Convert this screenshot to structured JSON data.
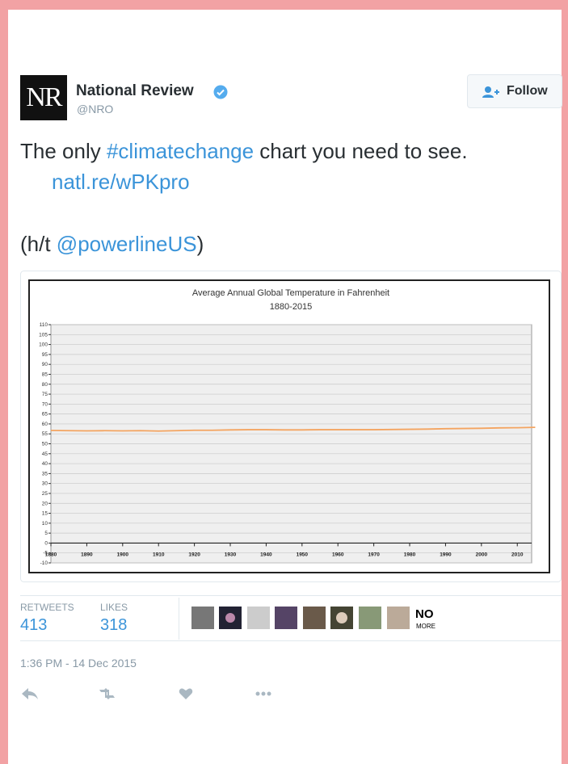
{
  "tweet": {
    "logo": "NR",
    "author": "National Review",
    "handle": "@NRO",
    "follow": "Follow",
    "text": {
      "prefix": "The only ",
      "hashtag": "#climatechange",
      "suffix": " chart you need to see.",
      "link": "natl.re/wPKpro",
      "ht_open": "(h/t ",
      "mention": "@powerlineUS",
      "ht_close": ")"
    },
    "stats": {
      "retweets_label": "RETWEETS",
      "retweets": "413",
      "likes_label": "LIKES",
      "likes": "318",
      "badge": [
        "NO",
        "MORE"
      ]
    },
    "timestamp": "1:36 PM - 14 Dec 2015"
  },
  "chart_data": {
    "type": "line",
    "title": "Average Annual Global Temperature in Fahrenheit",
    "subtitle": "1880-2015",
    "x": [
      1880,
      1885,
      1890,
      1895,
      1900,
      1905,
      1910,
      1915,
      1920,
      1925,
      1930,
      1935,
      1940,
      1945,
      1950,
      1955,
      1960,
      1965,
      1970,
      1975,
      1980,
      1985,
      1990,
      1995,
      2000,
      2005,
      2010,
      2015
    ],
    "values": [
      56.7,
      56.6,
      56.5,
      56.6,
      56.5,
      56.6,
      56.4,
      56.6,
      56.8,
      56.8,
      57.0,
      57.1,
      57.1,
      57.0,
      57.0,
      57.1,
      57.1,
      57.1,
      57.1,
      57.2,
      57.3,
      57.4,
      57.6,
      57.7,
      57.8,
      58.0,
      58.1,
      58.3
    ],
    "color": "#f4a460",
    "xlim": [
      1880,
      2014
    ],
    "xticks": [
      1880,
      1890,
      1900,
      1910,
      1920,
      1930,
      1940,
      1950,
      1960,
      1970,
      1980,
      1990,
      2000,
      2010
    ],
    "ylim": [
      -10,
      110
    ],
    "yticks": [
      -10,
      -5,
      0,
      5,
      10,
      15,
      20,
      25,
      30,
      35,
      40,
      45,
      50,
      55,
      60,
      65,
      70,
      75,
      80,
      85,
      90,
      95,
      100,
      105,
      110
    ],
    "grid": true
  }
}
